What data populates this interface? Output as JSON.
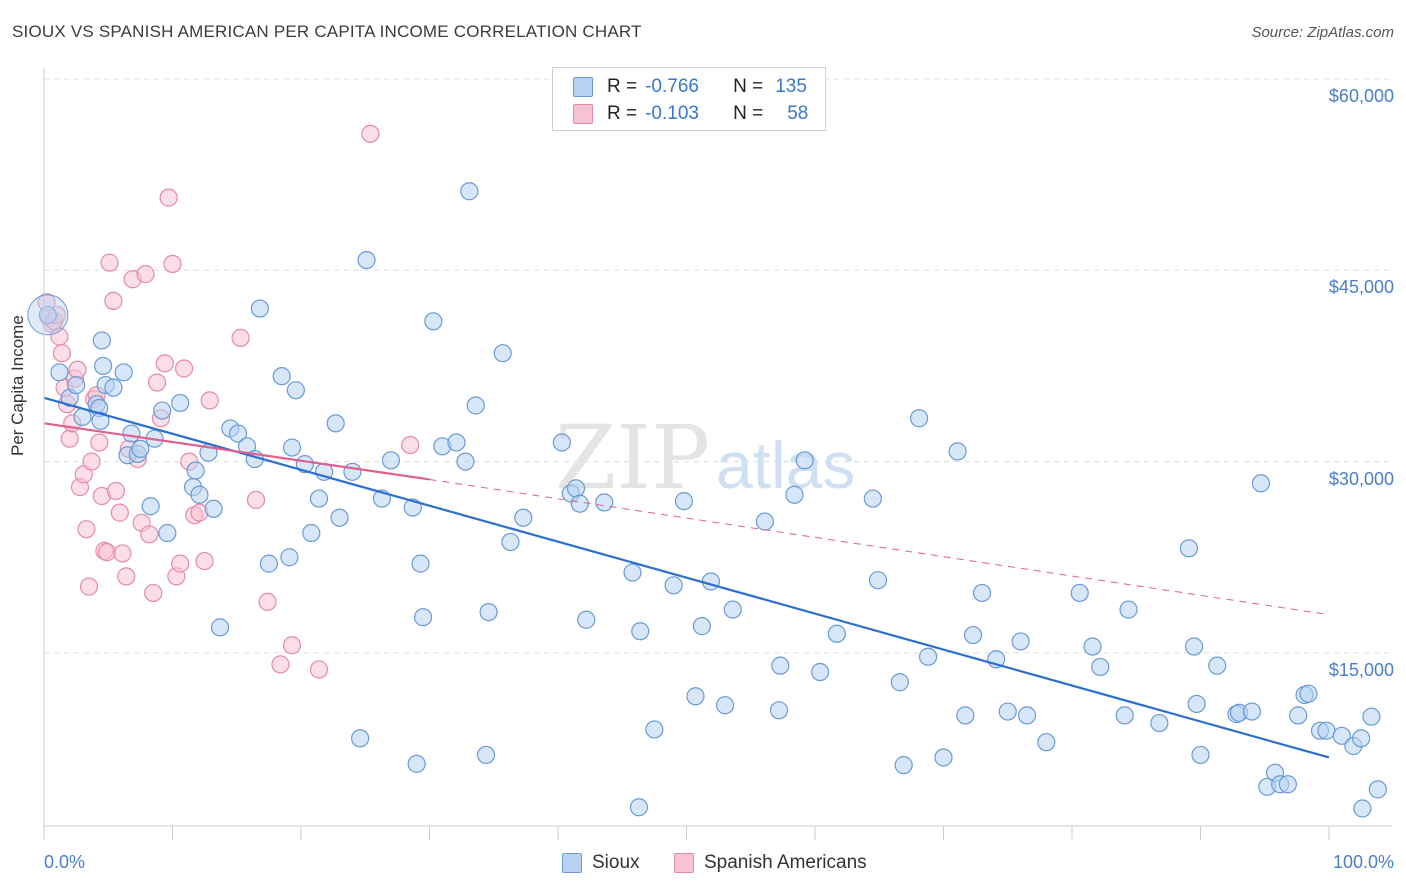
{
  "header": {
    "title": "SIOUX VS SPANISH AMERICAN PER CAPITA INCOME CORRELATION CHART",
    "source": "Source: ZipAtlas.com"
  },
  "watermark": {
    "zip": "ZIP",
    "atlas": "atlas"
  },
  "legend": {
    "r_label": "R =",
    "n_label": "N =",
    "rows": [
      {
        "r": "-0.766",
        "n": "135"
      },
      {
        "r": "-0.103",
        "n": "58"
      }
    ]
  },
  "colors": {
    "sioux_fill": "#b8d3f2",
    "sioux_stroke": "#6a9ad6",
    "sioux_line": "#2b6fcf",
    "spanish_fill": "#f7c3d4",
    "spanish_stroke": "#e58aaa",
    "spanish_line": "#e0608d",
    "grid": "#dcdcdc",
    "tick_text": "#4a7fc9"
  },
  "chart_data": {
    "type": "scatter",
    "title": "SIOUX VS SPANISH AMERICAN PER CAPITA INCOME CORRELATION CHART",
    "xlabel": "",
    "ylabel": "Per Capita Income",
    "xlim": [
      0,
      100
    ],
    "ylim": [
      1500,
      63000
    ],
    "x_tick_labels": [
      "0.0%",
      "100.0%"
    ],
    "y_ticks": [
      60000,
      45000,
      30000,
      15000
    ],
    "y_tick_labels": [
      "$60,000",
      "$45,000",
      "$30,000",
      "$15,000"
    ],
    "grid": true,
    "legend_position": "bottom",
    "series": [
      {
        "name": "Sioux",
        "color": "#6a9ad6",
        "trend": {
          "x": [
            0,
            100
          ],
          "y": [
            35000,
            6800
          ]
        },
        "points": [
          [
            0.3,
            41500
          ],
          [
            1.2,
            37000
          ],
          [
            2.0,
            35000
          ],
          [
            2.5,
            36000
          ],
          [
            3.0,
            33500
          ],
          [
            4.1,
            34500
          ],
          [
            4.3,
            34200
          ],
          [
            4.4,
            33200
          ],
          [
            4.5,
            39500
          ],
          [
            4.6,
            37500
          ],
          [
            4.8,
            36000
          ],
          [
            5.4,
            35800
          ],
          [
            6.2,
            37000
          ],
          [
            6.5,
            30500
          ],
          [
            6.8,
            32200
          ],
          [
            7.3,
            30600
          ],
          [
            7.5,
            31000
          ],
          [
            8.3,
            26500
          ],
          [
            8.6,
            31800
          ],
          [
            9.2,
            34000
          ],
          [
            9.6,
            24400
          ],
          [
            10.6,
            34600
          ],
          [
            11.6,
            28000
          ],
          [
            11.8,
            29300
          ],
          [
            12.1,
            27400
          ],
          [
            12.8,
            30700
          ],
          [
            13.2,
            26300
          ],
          [
            13.7,
            17000
          ],
          [
            14.5,
            32600
          ],
          [
            15.1,
            32200
          ],
          [
            15.8,
            31200
          ],
          [
            16.4,
            30200
          ],
          [
            16.8,
            42000
          ],
          [
            17.5,
            22000
          ],
          [
            18.5,
            36700
          ],
          [
            19.1,
            22500
          ],
          [
            19.3,
            31100
          ],
          [
            19.6,
            35600
          ],
          [
            20.3,
            29800
          ],
          [
            20.8,
            24400
          ],
          [
            21.4,
            27100
          ],
          [
            21.8,
            29200
          ],
          [
            22.7,
            33000
          ],
          [
            23.0,
            25600
          ],
          [
            24.0,
            29200
          ],
          [
            24.6,
            8300
          ],
          [
            25.1,
            45800
          ],
          [
            26.3,
            27100
          ],
          [
            27.0,
            30100
          ],
          [
            28.7,
            26400
          ],
          [
            29.0,
            6300
          ],
          [
            29.3,
            22000
          ],
          [
            29.5,
            17800
          ],
          [
            30.3,
            41000
          ],
          [
            31.0,
            31200
          ],
          [
            32.1,
            31500
          ],
          [
            32.8,
            30000
          ],
          [
            33.1,
            51200
          ],
          [
            33.6,
            34400
          ],
          [
            34.4,
            7000
          ],
          [
            34.6,
            18200
          ],
          [
            35.7,
            38500
          ],
          [
            36.3,
            23700
          ],
          [
            37.3,
            25600
          ],
          [
            40.3,
            31500
          ],
          [
            41.0,
            27500
          ],
          [
            41.4,
            27900
          ],
          [
            41.7,
            26700
          ],
          [
            42.2,
            17600
          ],
          [
            43.6,
            26800
          ],
          [
            45.8,
            21300
          ],
          [
            46.4,
            16700
          ],
          [
            47.5,
            9000
          ],
          [
            49.0,
            20300
          ],
          [
            49.8,
            26900
          ],
          [
            50.7,
            11600
          ],
          [
            51.2,
            17100
          ],
          [
            51.9,
            20600
          ],
          [
            53.0,
            10900
          ],
          [
            53.6,
            18400
          ],
          [
            56.1,
            25300
          ],
          [
            57.2,
            10500
          ],
          [
            57.3,
            14000
          ],
          [
            58.4,
            27400
          ],
          [
            59.2,
            30100
          ],
          [
            60.4,
            13500
          ],
          [
            61.7,
            16500
          ],
          [
            64.5,
            27100
          ],
          [
            64.9,
            20700
          ],
          [
            66.6,
            12700
          ],
          [
            66.9,
            6200
          ],
          [
            68.1,
            33400
          ],
          [
            68.8,
            14700
          ],
          [
            70.0,
            6800
          ],
          [
            71.1,
            30800
          ],
          [
            71.7,
            10100
          ],
          [
            72.3,
            16400
          ],
          [
            73.0,
            19700
          ],
          [
            74.1,
            14500
          ],
          [
            75.0,
            10400
          ],
          [
            76.0,
            15900
          ],
          [
            76.5,
            10100
          ],
          [
            78.0,
            8000
          ],
          [
            80.6,
            19700
          ],
          [
            81.6,
            15500
          ],
          [
            82.2,
            13900
          ],
          [
            84.1,
            10100
          ],
          [
            84.4,
            18400
          ],
          [
            86.8,
            9500
          ],
          [
            89.1,
            23200
          ],
          [
            89.5,
            15500
          ],
          [
            89.7,
            11000
          ],
          [
            90.0,
            7000
          ],
          [
            91.3,
            14000
          ],
          [
            92.8,
            10200
          ],
          [
            93.0,
            10300
          ],
          [
            94.0,
            10400
          ],
          [
            94.7,
            28300
          ],
          [
            95.2,
            4500
          ],
          [
            95.8,
            5600
          ],
          [
            96.2,
            4700
          ],
          [
            96.8,
            4700
          ],
          [
            97.6,
            10100
          ],
          [
            98.1,
            11700
          ],
          [
            98.4,
            11800
          ],
          [
            99.3,
            8900
          ],
          [
            99.8,
            8900
          ],
          [
            101.0,
            8500
          ],
          [
            101.9,
            7700
          ],
          [
            102.5,
            8300
          ],
          [
            102.6,
            2800
          ],
          [
            103.3,
            10000
          ],
          [
            103.8,
            4300
          ],
          [
            46.3,
            2900
          ]
        ]
      },
      {
        "name": "Spanish Americans",
        "color": "#e58aaa",
        "trend": {
          "x": [
            0,
            30
          ],
          "y": [
            33000,
            28600
          ]
        },
        "trend_dashed": {
          "x": [
            30,
            100
          ],
          "y": [
            28600,
            18000
          ]
        },
        "points": [
          [
            0.2,
            42500
          ],
          [
            0.4,
            41300
          ],
          [
            0.6,
            40800
          ],
          [
            0.8,
            41000
          ],
          [
            1.0,
            41500
          ],
          [
            1.2,
            39800
          ],
          [
            1.4,
            38500
          ],
          [
            1.6,
            35800
          ],
          [
            1.8,
            34500
          ],
          [
            2.0,
            31800
          ],
          [
            2.2,
            33000
          ],
          [
            2.4,
            36500
          ],
          [
            2.6,
            37200
          ],
          [
            2.8,
            28000
          ],
          [
            3.1,
            29000
          ],
          [
            3.3,
            24700
          ],
          [
            3.5,
            20200
          ],
          [
            3.7,
            30000
          ],
          [
            3.9,
            34900
          ],
          [
            4.1,
            35200
          ],
          [
            4.3,
            31500
          ],
          [
            4.5,
            27300
          ],
          [
            4.7,
            23000
          ],
          [
            4.9,
            22900
          ],
          [
            5.1,
            45600
          ],
          [
            5.4,
            42600
          ],
          [
            5.6,
            27700
          ],
          [
            5.9,
            26000
          ],
          [
            6.1,
            22800
          ],
          [
            6.4,
            21000
          ],
          [
            6.6,
            31000
          ],
          [
            6.9,
            44300
          ],
          [
            7.3,
            30200
          ],
          [
            7.6,
            25200
          ],
          [
            7.9,
            44700
          ],
          [
            8.2,
            24300
          ],
          [
            8.5,
            19700
          ],
          [
            8.8,
            36200
          ],
          [
            9.1,
            33400
          ],
          [
            9.4,
            37700
          ],
          [
            9.7,
            50700
          ],
          [
            10.0,
            45500
          ],
          [
            10.3,
            21000
          ],
          [
            10.6,
            22000
          ],
          [
            10.9,
            37300
          ],
          [
            11.3,
            30000
          ],
          [
            11.7,
            25800
          ],
          [
            12.1,
            26000
          ],
          [
            12.5,
            22200
          ],
          [
            12.9,
            34800
          ],
          [
            15.3,
            39700
          ],
          [
            16.5,
            27000
          ],
          [
            17.4,
            19000
          ],
          [
            18.4,
            14100
          ],
          [
            19.3,
            15600
          ],
          [
            21.4,
            13700
          ],
          [
            25.4,
            55700
          ],
          [
            28.5,
            31300
          ]
        ]
      }
    ]
  },
  "bottom_legend": {
    "items": [
      {
        "label": "Sioux"
      },
      {
        "label": "Spanish Americans"
      }
    ]
  }
}
